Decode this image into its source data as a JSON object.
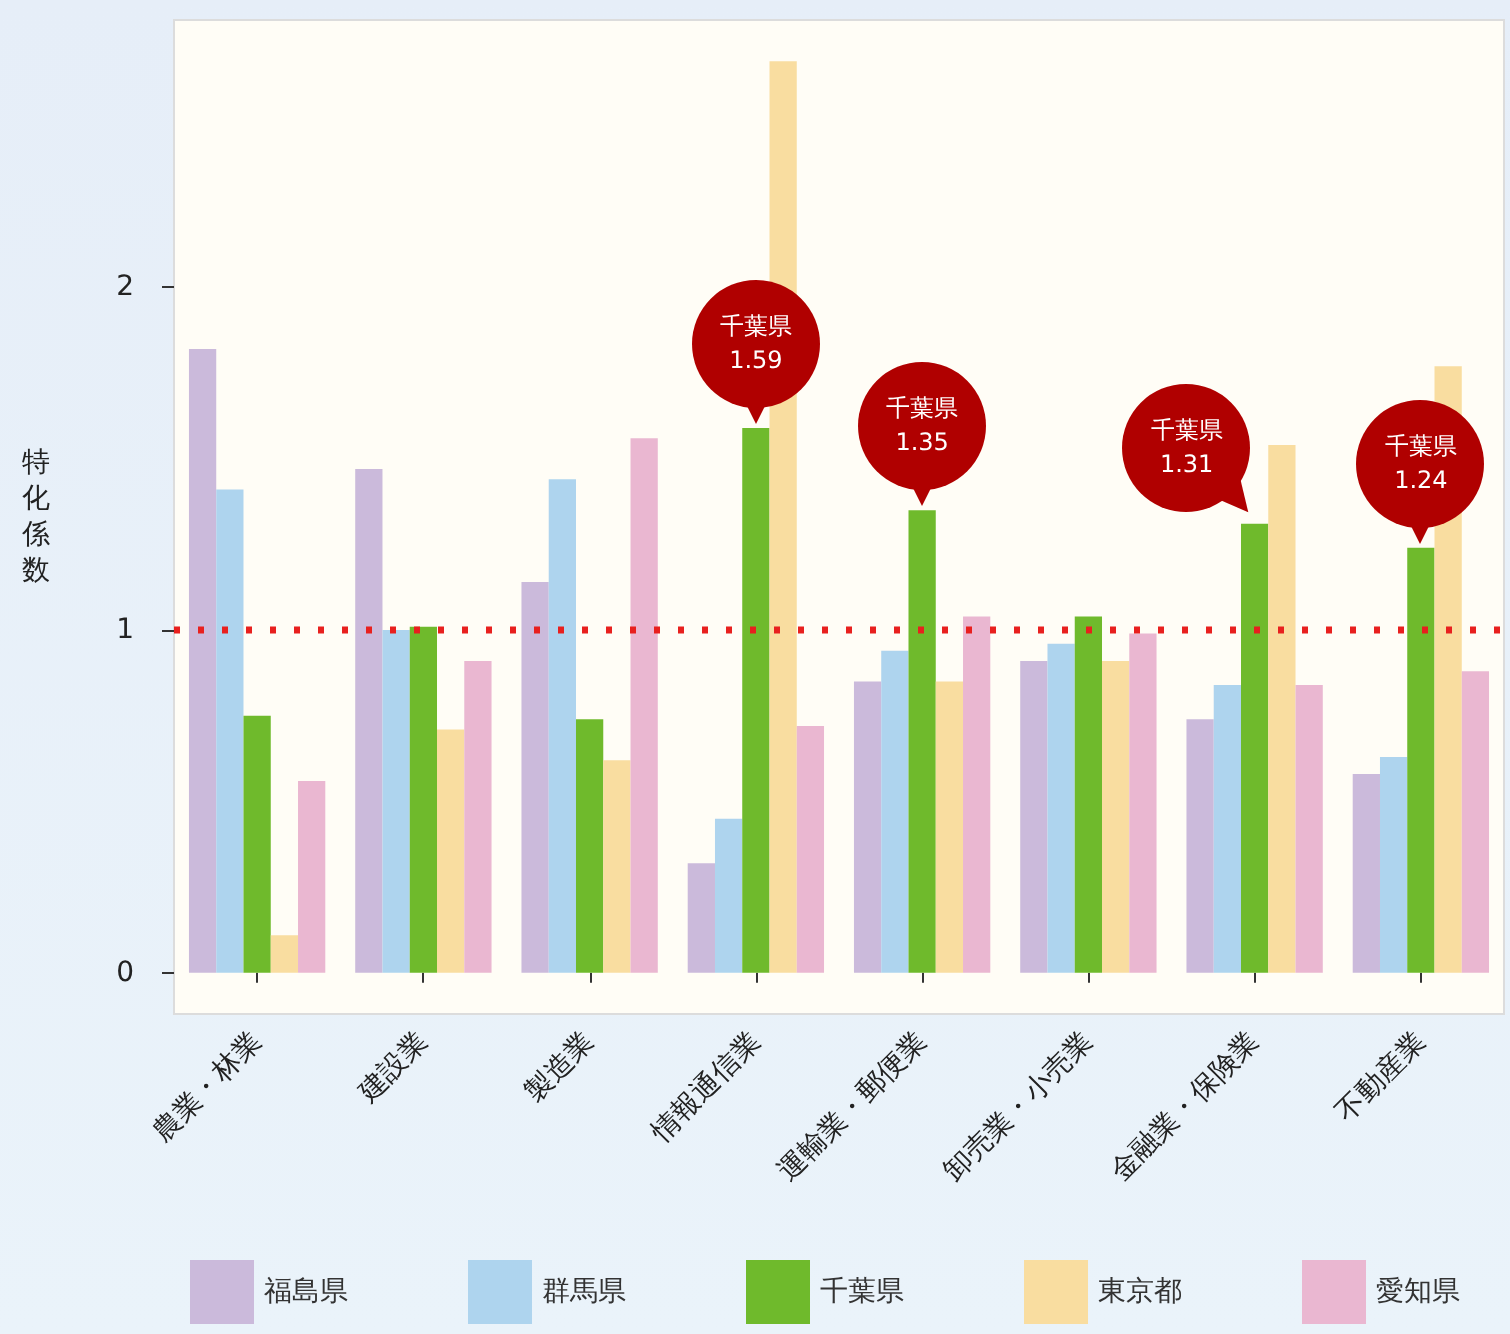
{
  "chart_data": {
    "type": "bar",
    "ylabel": "特化係数",
    "categories": [
      "農業・林業",
      "建設業",
      "製造業",
      "情報通信業",
      "運輸業・郵便業",
      "卸売業・小売業",
      "金融業・保険業",
      "不動産業"
    ],
    "series": [
      {
        "name": "福島県",
        "color": "#cbbadb",
        "values": [
          1.82,
          1.47,
          1.14,
          0.32,
          0.85,
          0.91,
          0.74,
          0.58
        ]
      },
      {
        "name": "群馬県",
        "color": "#aed4ee",
        "values": [
          1.41,
          1.0,
          1.44,
          0.45,
          0.94,
          0.96,
          0.84,
          0.63
        ]
      },
      {
        "name": "千葉県",
        "color": "#6fba2c",
        "values": [
          0.75,
          1.01,
          0.74,
          1.59,
          1.35,
          1.04,
          1.31,
          1.24
        ]
      },
      {
        "name": "東京都",
        "color": "#f9dda0",
        "values": [
          0.11,
          0.71,
          0.62,
          2.66,
          0.85,
          0.91,
          1.54,
          1.77
        ]
      },
      {
        "name": "愛知県",
        "color": "#eab7d1",
        "values": [
          0.56,
          0.91,
          1.56,
          0.72,
          1.04,
          0.99,
          0.84,
          0.88
        ]
      }
    ],
    "ylim": [
      -0.12,
      2.78
    ],
    "yticks": [
      0,
      1,
      2
    ],
    "grid": false,
    "legend": "bottom",
    "ref_lines": [
      {
        "axis": "y",
        "value": 1,
        "color": "#e8201e",
        "line_style": "dotted"
      }
    ],
    "annotations": [
      {
        "text": "千葉県\n1.59",
        "x": "情報通信業",
        "y": 1.59
      },
      {
        "text": "千葉県\n1.35",
        "x": "運輸業・郵便業",
        "y": 1.35
      },
      {
        "text": "千葉県\n1.31",
        "x": "金融業・保険業",
        "y": 1.31
      },
      {
        "text": "千葉県\n1.24",
        "x": "不動産業",
        "y": 1.24
      }
    ]
  }
}
